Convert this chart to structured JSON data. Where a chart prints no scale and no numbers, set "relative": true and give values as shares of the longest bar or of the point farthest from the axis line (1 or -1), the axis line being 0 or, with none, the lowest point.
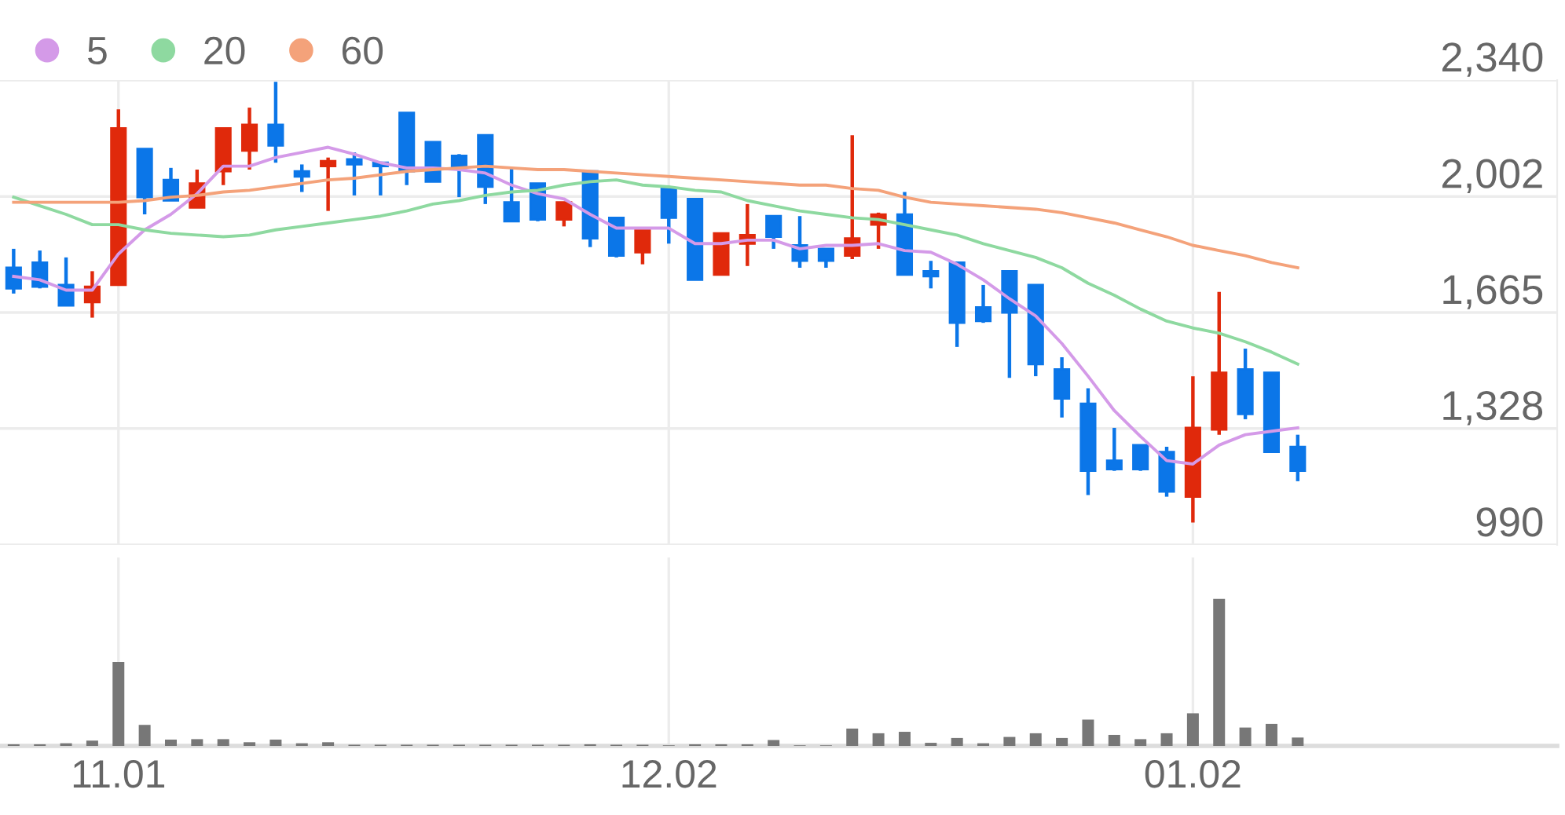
{
  "chart_data": [
    {
      "type": "candlestick",
      "tick_labels": "y",
      "grid": true,
      "legend": "top left",
      "categories": [
        null,
        null,
        null,
        null,
        "11.01",
        null,
        null,
        null,
        null,
        null,
        null,
        null,
        null,
        null,
        null,
        null,
        null,
        null,
        null,
        null,
        null,
        null,
        null,
        null,
        null,
        "12.02",
        null,
        null,
        null,
        null,
        null,
        null,
        null,
        null,
        null,
        null,
        null,
        null,
        null,
        null,
        null,
        null,
        null,
        null,
        null,
        "01.02",
        null,
        null,
        null,
        null
      ],
      "ohlc": [
        [
          1795,
          1850,
          1720,
          1735
        ],
        [
          1810,
          1845,
          1735,
          1740
        ],
        [
          1745,
          1825,
          1685,
          1685
        ],
        [
          1695,
          1785,
          1650,
          1740
        ],
        [
          1745,
          2255,
          1745,
          2200
        ],
        [
          2140,
          2140,
          1950,
          2000
        ],
        [
          2050,
          2085,
          1990,
          1990
        ],
        [
          1970,
          2080,
          1970,
          2040
        ],
        [
          2075,
          2200,
          2035,
          2200
        ],
        [
          2135,
          2260,
          2080,
          2210
        ],
        [
          2210,
          2335,
          2100,
          2150
        ],
        [
          2075,
          2095,
          2015,
          2060
        ],
        [
          2090,
          2115,
          1960,
          2105
        ],
        [
          2110,
          2130,
          2005,
          2095
        ],
        [
          2100,
          2100,
          2005,
          2090
        ],
        [
          2245,
          2245,
          2035,
          2075
        ],
        [
          2160,
          2160,
          2045,
          2045
        ],
        [
          2120,
          2125,
          2000,
          2085
        ],
        [
          2180,
          2180,
          1980,
          2030
        ],
        [
          1985,
          2085,
          1930,
          1930
        ],
        [
          2040,
          2040,
          1930,
          1935
        ],
        [
          1935,
          1985,
          1915,
          1985
        ],
        [
          2075,
          2075,
          1855,
          1880
        ],
        [
          1940,
          1940,
          1825,
          1830
        ],
        [
          1840,
          1910,
          1805,
          1910
        ],
        [
          2025,
          2025,
          1865,
          1940
        ],
        [
          1995,
          1995,
          1760,
          1760
        ],
        [
          1775,
          1895,
          1775,
          1895
        ],
        [
          1865,
          1980,
          1800,
          1890
        ],
        [
          1945,
          1945,
          1850,
          1885
        ],
        [
          1860,
          1945,
          1795,
          1815
        ],
        [
          1850,
          1850,
          1795,
          1815
        ],
        [
          1830,
          2180,
          1820,
          1880
        ],
        [
          1920,
          1955,
          1850,
          1950
        ],
        [
          1950,
          2015,
          1775,
          1775
        ],
        [
          1785,
          1815,
          1735,
          1770
        ],
        [
          1810,
          1810,
          1565,
          1635
        ],
        [
          1680,
          1745,
          1635,
          1640
        ],
        [
          1785,
          1785,
          1475,
          1665
        ],
        [
          1745,
          1745,
          1480,
          1515
        ],
        [
          1500,
          1535,
          1360,
          1415
        ],
        [
          1400,
          1445,
          1135,
          1205
        ],
        [
          1235,
          1330,
          1205,
          1210
        ],
        [
          1280,
          1280,
          1205,
          1210
        ],
        [
          1260,
          1275,
          1130,
          1145
        ],
        [
          1130,
          1480,
          1055,
          1330
        ],
        [
          1325,
          1725,
          1310,
          1490
        ],
        [
          1500,
          1560,
          1355,
          1370
        ],
        [
          1490,
          1490,
          1260,
          1260
        ],
        [
          1275,
          1310,
          1175,
          1205
        ]
      ],
      "colors": [
        "#0b76e8",
        "#0b76e8",
        "#0b76e8",
        "#e0290b",
        "#e0290b",
        "#0b76e8",
        "#0b76e8",
        "#e0290b",
        "#e0290b",
        "#e0290b",
        "#0b76e8",
        "#0b76e8",
        "#e0290b",
        "#0b76e8",
        "#0b76e8",
        "#0b76e8",
        "#0b76e8",
        "#0b76e8",
        "#0b76e8",
        "#0b76e8",
        "#0b76e8",
        "#e0290b",
        "#0b76e8",
        "#0b76e8",
        "#e0290b",
        "#0b76e8",
        "#0b76e8",
        "#e0290b",
        "#e0290b",
        "#0b76e8",
        "#0b76e8",
        "#0b76e8",
        "#e0290b",
        "#e0290b",
        "#0b76e8",
        "#0b76e8",
        "#0b76e8",
        "#0b76e8",
        "#0b76e8",
        "#0b76e8",
        "#0b76e8",
        "#0b76e8",
        "#0b76e8",
        "#0b76e8",
        "#0b76e8",
        "#e0290b",
        "#e0290b",
        "#0b76e8",
        "#0b76e8",
        "#0b76e8"
      ],
      "series": [
        {
          "name": "5",
          "type": "line",
          "color": "#d49ae8",
          "values": [
            1770,
            1760,
            1730,
            1730,
            1835,
            1905,
            1950,
            2010,
            2090,
            2090,
            2115,
            2130,
            2145,
            2125,
            2100,
            2085,
            2085,
            2080,
            2070,
            2035,
            2010,
            1995,
            1950,
            1910,
            1910,
            1910,
            1865,
            1865,
            1875,
            1875,
            1850,
            1860,
            1860,
            1865,
            1845,
            1840,
            1805,
            1760,
            1705,
            1655,
            1575,
            1480,
            1380,
            1305,
            1235,
            1225,
            1280,
            1310,
            1320,
            1330
          ]
        },
        {
          "name": "20",
          "type": "line",
          "color": "#8ed9a0",
          "values": [
            2000,
            1975,
            1950,
            1920,
            1920,
            1905,
            1895,
            1890,
            1885,
            1890,
            1905,
            1915,
            1925,
            1935,
            1945,
            1960,
            1980,
            1990,
            2005,
            2015,
            2020,
            2035,
            2045,
            2050,
            2035,
            2030,
            2020,
            2015,
            1990,
            1975,
            1960,
            1950,
            1940,
            1935,
            1920,
            1905,
            1890,
            1865,
            1845,
            1825,
            1795,
            1750,
            1715,
            1675,
            1640,
            1620,
            1605,
            1580,
            1550,
            1515
          ]
        },
        {
          "name": "60",
          "type": "line",
          "color": "#f4a27a",
          "values": [
            1985,
            1985,
            1985,
            1985,
            1985,
            1990,
            2000,
            2005,
            2015,
            2020,
            2030,
            2040,
            2050,
            2055,
            2065,
            2075,
            2080,
            2085,
            2090,
            2085,
            2080,
            2080,
            2075,
            2070,
            2065,
            2060,
            2055,
            2050,
            2045,
            2040,
            2035,
            2035,
            2025,
            2020,
            2000,
            1985,
            1980,
            1975,
            1970,
            1965,
            1955,
            1940,
            1925,
            1905,
            1885,
            1860,
            1845,
            1830,
            1810,
            1795
          ]
        }
      ],
      "ylim": [
        990,
        2340
      ],
      "yticks": [
        990,
        {
          "value": 1328,
          "label": "1,328"
        },
        {
          "value": 1665,
          "label": "1,665"
        },
        {
          "value": 2002,
          "label": "2,002"
        },
        {
          "value": 2340,
          "label": "2,340"
        }
      ]
    },
    {
      "type": "bar",
      "relative": true,
      "tick_labels": "x",
      "grid": "x",
      "color": "#777777",
      "categories": [
        null,
        null,
        null,
        null,
        "11.01",
        null,
        null,
        null,
        null,
        null,
        null,
        null,
        null,
        null,
        null,
        null,
        null,
        null,
        null,
        null,
        null,
        null,
        null,
        null,
        null,
        "12.02",
        null,
        null,
        null,
        null,
        null,
        null,
        null,
        null,
        null,
        null,
        null,
        null,
        null,
        null,
        null,
        null,
        null,
        null,
        null,
        "01.02",
        null,
        null,
        null,
        null
      ],
      "values": [
        0.011,
        0.011,
        0.018,
        0.036,
        0.571,
        0.143,
        0.043,
        0.046,
        0.046,
        0.025,
        0.043,
        0.018,
        0.025,
        0.008,
        0.008,
        0.008,
        0.008,
        0.008,
        0.008,
        0.008,
        0.008,
        0.008,
        0.011,
        0.008,
        0.008,
        0.004,
        0.011,
        0.011,
        0.011,
        0.04,
        0.004,
        0.004,
        0.118,
        0.086,
        0.096,
        0.021,
        0.054,
        0.018,
        0.061,
        0.086,
        0.054,
        0.179,
        0.075,
        0.046,
        0.086,
        0.222,
        1,
        0.125,
        0.15,
        0.057
      ]
    }
  ]
}
